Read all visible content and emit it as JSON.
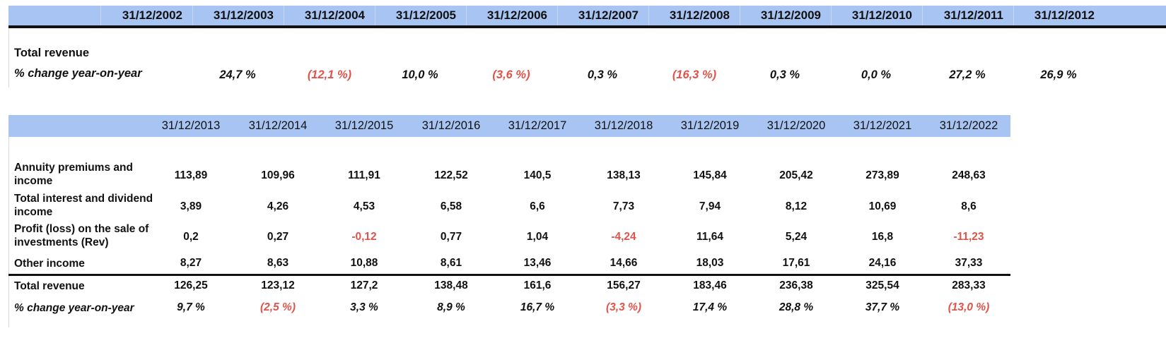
{
  "table1": {
    "years": [
      "31/12/2002",
      "31/12/2003",
      "31/12/2004",
      "31/12/2005",
      "31/12/2006",
      "31/12/2007",
      "31/12/2008",
      "31/12/2009",
      "31/12/2010",
      "31/12/2011",
      "31/12/2012"
    ],
    "section_label": "Total revenue",
    "pct_label": "% change year-on-year",
    "pct_values": [
      "24,7 %",
      "(12,1 %)",
      "10,0 %",
      "(3,6 %)",
      "0,3 %",
      "(16,3 %)",
      "0,3 %",
      "0,0 %",
      "27,2 %",
      "26,9 %"
    ]
  },
  "table2": {
    "years": [
      "31/12/2013",
      "31/12/2014",
      "31/12/2015",
      "31/12/2016",
      "31/12/2017",
      "31/12/2018",
      "31/12/2019",
      "31/12/2020",
      "31/12/2021",
      "31/12/2022"
    ],
    "rows": [
      {
        "label": "Annuity premiums and income",
        "values": [
          "113,89",
          "109,96",
          "111,91",
          "122,52",
          "140,5",
          "138,13",
          "145,84",
          "205,42",
          "273,89",
          "248,63"
        ]
      },
      {
        "label": "Total interest and dividend income",
        "values": [
          "3,89",
          "4,26",
          "4,53",
          "6,58",
          "6,6",
          "7,73",
          "7,94",
          "8,12",
          "10,69",
          "8,6"
        ]
      },
      {
        "label": "Profit (loss) on the sale of investments (Rev)",
        "values": [
          "0,2",
          "0,27",
          "-0,12",
          "0,77",
          "1,04",
          "-4,24",
          "11,64",
          "5,24",
          "16,8",
          "-11,23"
        ]
      },
      {
        "label": "Other income",
        "values": [
          "8,27",
          "8,63",
          "10,88",
          "8,61",
          "13,46",
          "14,66",
          "18,03",
          "17,61",
          "24,16",
          "37,33"
        ]
      },
      {
        "label": "Total revenue",
        "values": [
          "126,25",
          "123,12",
          "127,2",
          "138,48",
          "161,6",
          "156,27",
          "183,46",
          "236,38",
          "325,54",
          "283,33"
        ]
      },
      {
        "label": "% change year-on-year",
        "values": [
          "9,7 %",
          "(2,5 %)",
          "3,3 %",
          "8,9 %",
          "16,7 %",
          "(3,3 %)",
          "17,4 %",
          "28,8 %",
          "37,7 %",
          "(13,0 %)"
        ]
      }
    ]
  },
  "colors": {
    "header_bg": "#a7c4f2",
    "negative": "#e0534a"
  }
}
